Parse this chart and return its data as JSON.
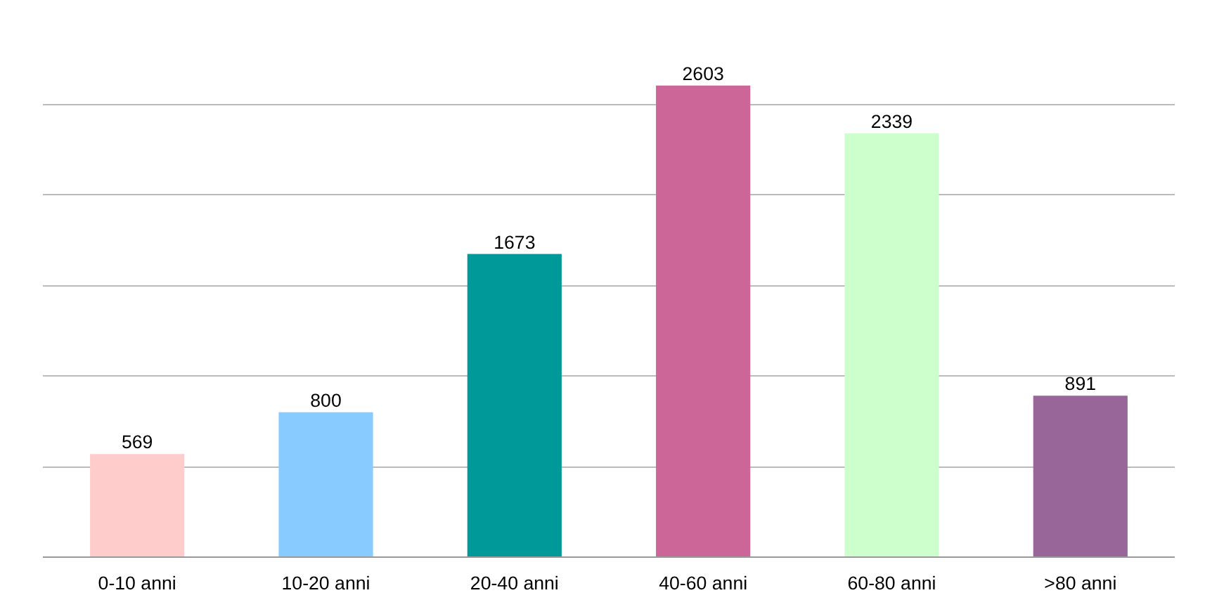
{
  "chart_data": {
    "type": "bar",
    "categories": [
      "0-10 anni",
      "10-20 anni",
      "20-40 anni",
      "40-60 anni",
      "60-80 anni",
      ">80 anni"
    ],
    "values": [
      569,
      800,
      1673,
      2603,
      2339,
      891
    ],
    "colors": [
      "#ffcccc",
      "#88ccff",
      "#009999",
      "#cc6699",
      "#ccffcc",
      "#996699"
    ],
    "tick_labels": "x",
    "grid": "y",
    "data_labels": true
  }
}
